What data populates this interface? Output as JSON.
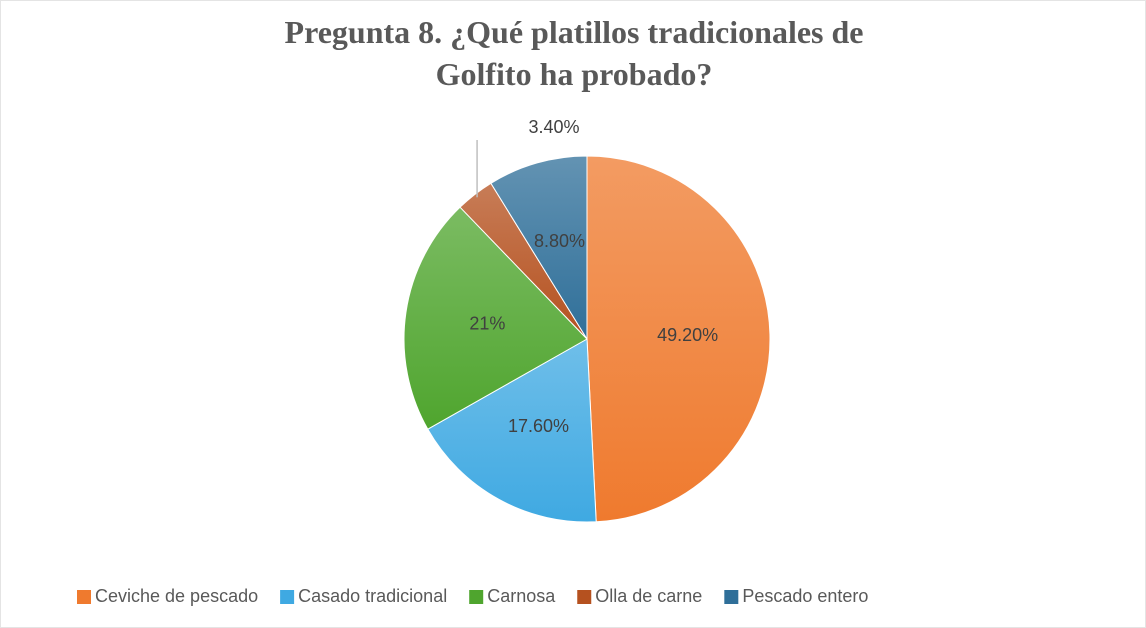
{
  "chart_data": {
    "type": "pie",
    "title": "Pregunta 8. ¿Qué platillos tradicionales de Golfito ha probado?",
    "categories": [
      "Ceviche de pescado",
      "Casado tradicional",
      "Carnosa",
      "Olla de carne",
      "Pescado entero"
    ],
    "values": [
      49.2,
      17.6,
      21,
      3.4,
      8.8
    ],
    "value_labels": [
      "49.20%",
      "17.60%",
      "21%",
      "3.40%",
      "8.80%"
    ],
    "colors": [
      "#ef7a2e",
      "#3fa9e2",
      "#4fa52e",
      "#b5511f",
      "#2f6f99"
    ],
    "legend": "bottom"
  }
}
